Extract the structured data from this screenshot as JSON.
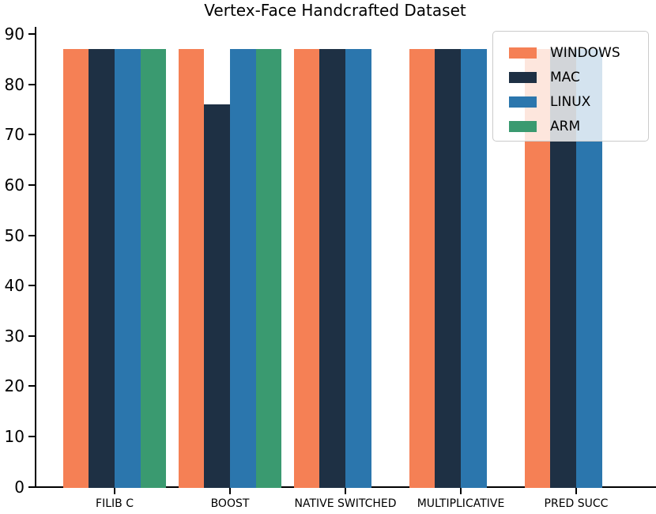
{
  "chart_data": {
    "type": "bar",
    "title": "Vertex-Face Handcrafted Dataset",
    "categories": [
      "FILIB C",
      "BOOST",
      "NATIVE SWITCHED",
      "MULTIPLICATIVE",
      "PRED SUCC"
    ],
    "series": [
      {
        "name": "WINDOWS",
        "color": "#F58055",
        "values": [
          87,
          87,
          87,
          87,
          87
        ]
      },
      {
        "name": "MAC",
        "color": "#1E3044",
        "values": [
          87,
          76,
          87,
          87,
          87
        ]
      },
      {
        "name": "LINUX",
        "color": "#2B76AD",
        "values": [
          87,
          87,
          87,
          87,
          87
        ]
      },
      {
        "name": "ARM",
        "color": "#3A9A70",
        "values": [
          87,
          87,
          null,
          null,
          null
        ]
      }
    ],
    "xlabel": "",
    "ylabel": "",
    "ylim": [
      0,
      91.35
    ],
    "yticks": [
      0,
      10,
      20,
      30,
      40,
      50,
      60,
      70,
      80,
      90
    ],
    "grid": false,
    "legend_position": "upper right",
    "legend_labels": [
      "WINDOWS",
      "MAC",
      "LINUX",
      "ARM"
    ],
    "axis_color": "#000000",
    "background_color": "#ffffff"
  }
}
